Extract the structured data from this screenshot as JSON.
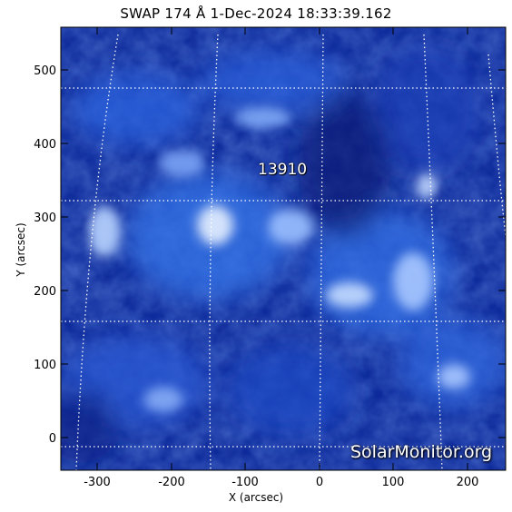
{
  "title": "SWAP 174 Å  1-Dec-2024 18:33:39.162",
  "active_region": "13910",
  "watermark": "SolarMonitor.org",
  "axes": {
    "xlabel": "X (arcsec)",
    "ylabel": "Y (arcsec)",
    "xticks": [
      "-300",
      "-200",
      "-100",
      "0",
      "100",
      "200"
    ],
    "yticks": [
      "0",
      "100",
      "200",
      "300",
      "400",
      "500"
    ]
  },
  "colors": {
    "background": "#ffffff",
    "image_dark": "#06166a",
    "image_mid": "#1d4fd0",
    "image_bright": "#cfe3ff",
    "grid": "#ffffff"
  }
}
